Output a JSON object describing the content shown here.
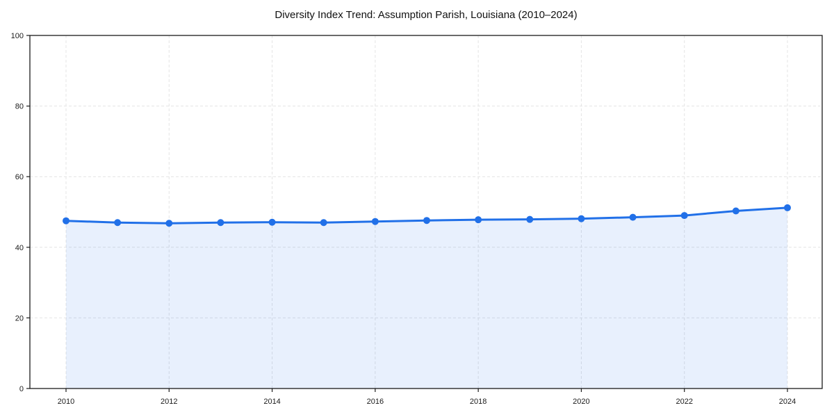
{
  "chart_data": {
    "type": "line",
    "title": "Diversity Index Trend: Assumption Parish, Louisiana (2010–2024)",
    "x": [
      2010,
      2011,
      2012,
      2013,
      2014,
      2015,
      2016,
      2017,
      2018,
      2019,
      2020,
      2021,
      2022,
      2023,
      2024
    ],
    "series": [
      {
        "name": "Diversity Index",
        "values": [
          47.5,
          47.0,
          46.8,
          47.0,
          47.1,
          47.0,
          47.3,
          47.6,
          47.8,
          47.9,
          48.1,
          48.5,
          49.0,
          50.3,
          51.2
        ]
      }
    ],
    "xlabel": "",
    "ylabel": "",
    "ylim": [
      0,
      100
    ],
    "y_ticks": [
      0,
      20,
      40,
      60,
      80,
      100
    ],
    "x_ticks": [
      2010,
      2012,
      2014,
      2016,
      2018,
      2020,
      2022,
      2024
    ],
    "grid": "dashed-both-axes",
    "legend": "none",
    "area_fill": true,
    "markers": true,
    "colors": {
      "line": "#2170e8",
      "marker": "#2170e8",
      "area": "rgba(33,112,232,0.10)",
      "grid": "#e4e4e4",
      "axis": "#1a1a1a",
      "tick_text": "#1a1a1a",
      "title_text": "#111111",
      "background": "#ffffff"
    }
  }
}
